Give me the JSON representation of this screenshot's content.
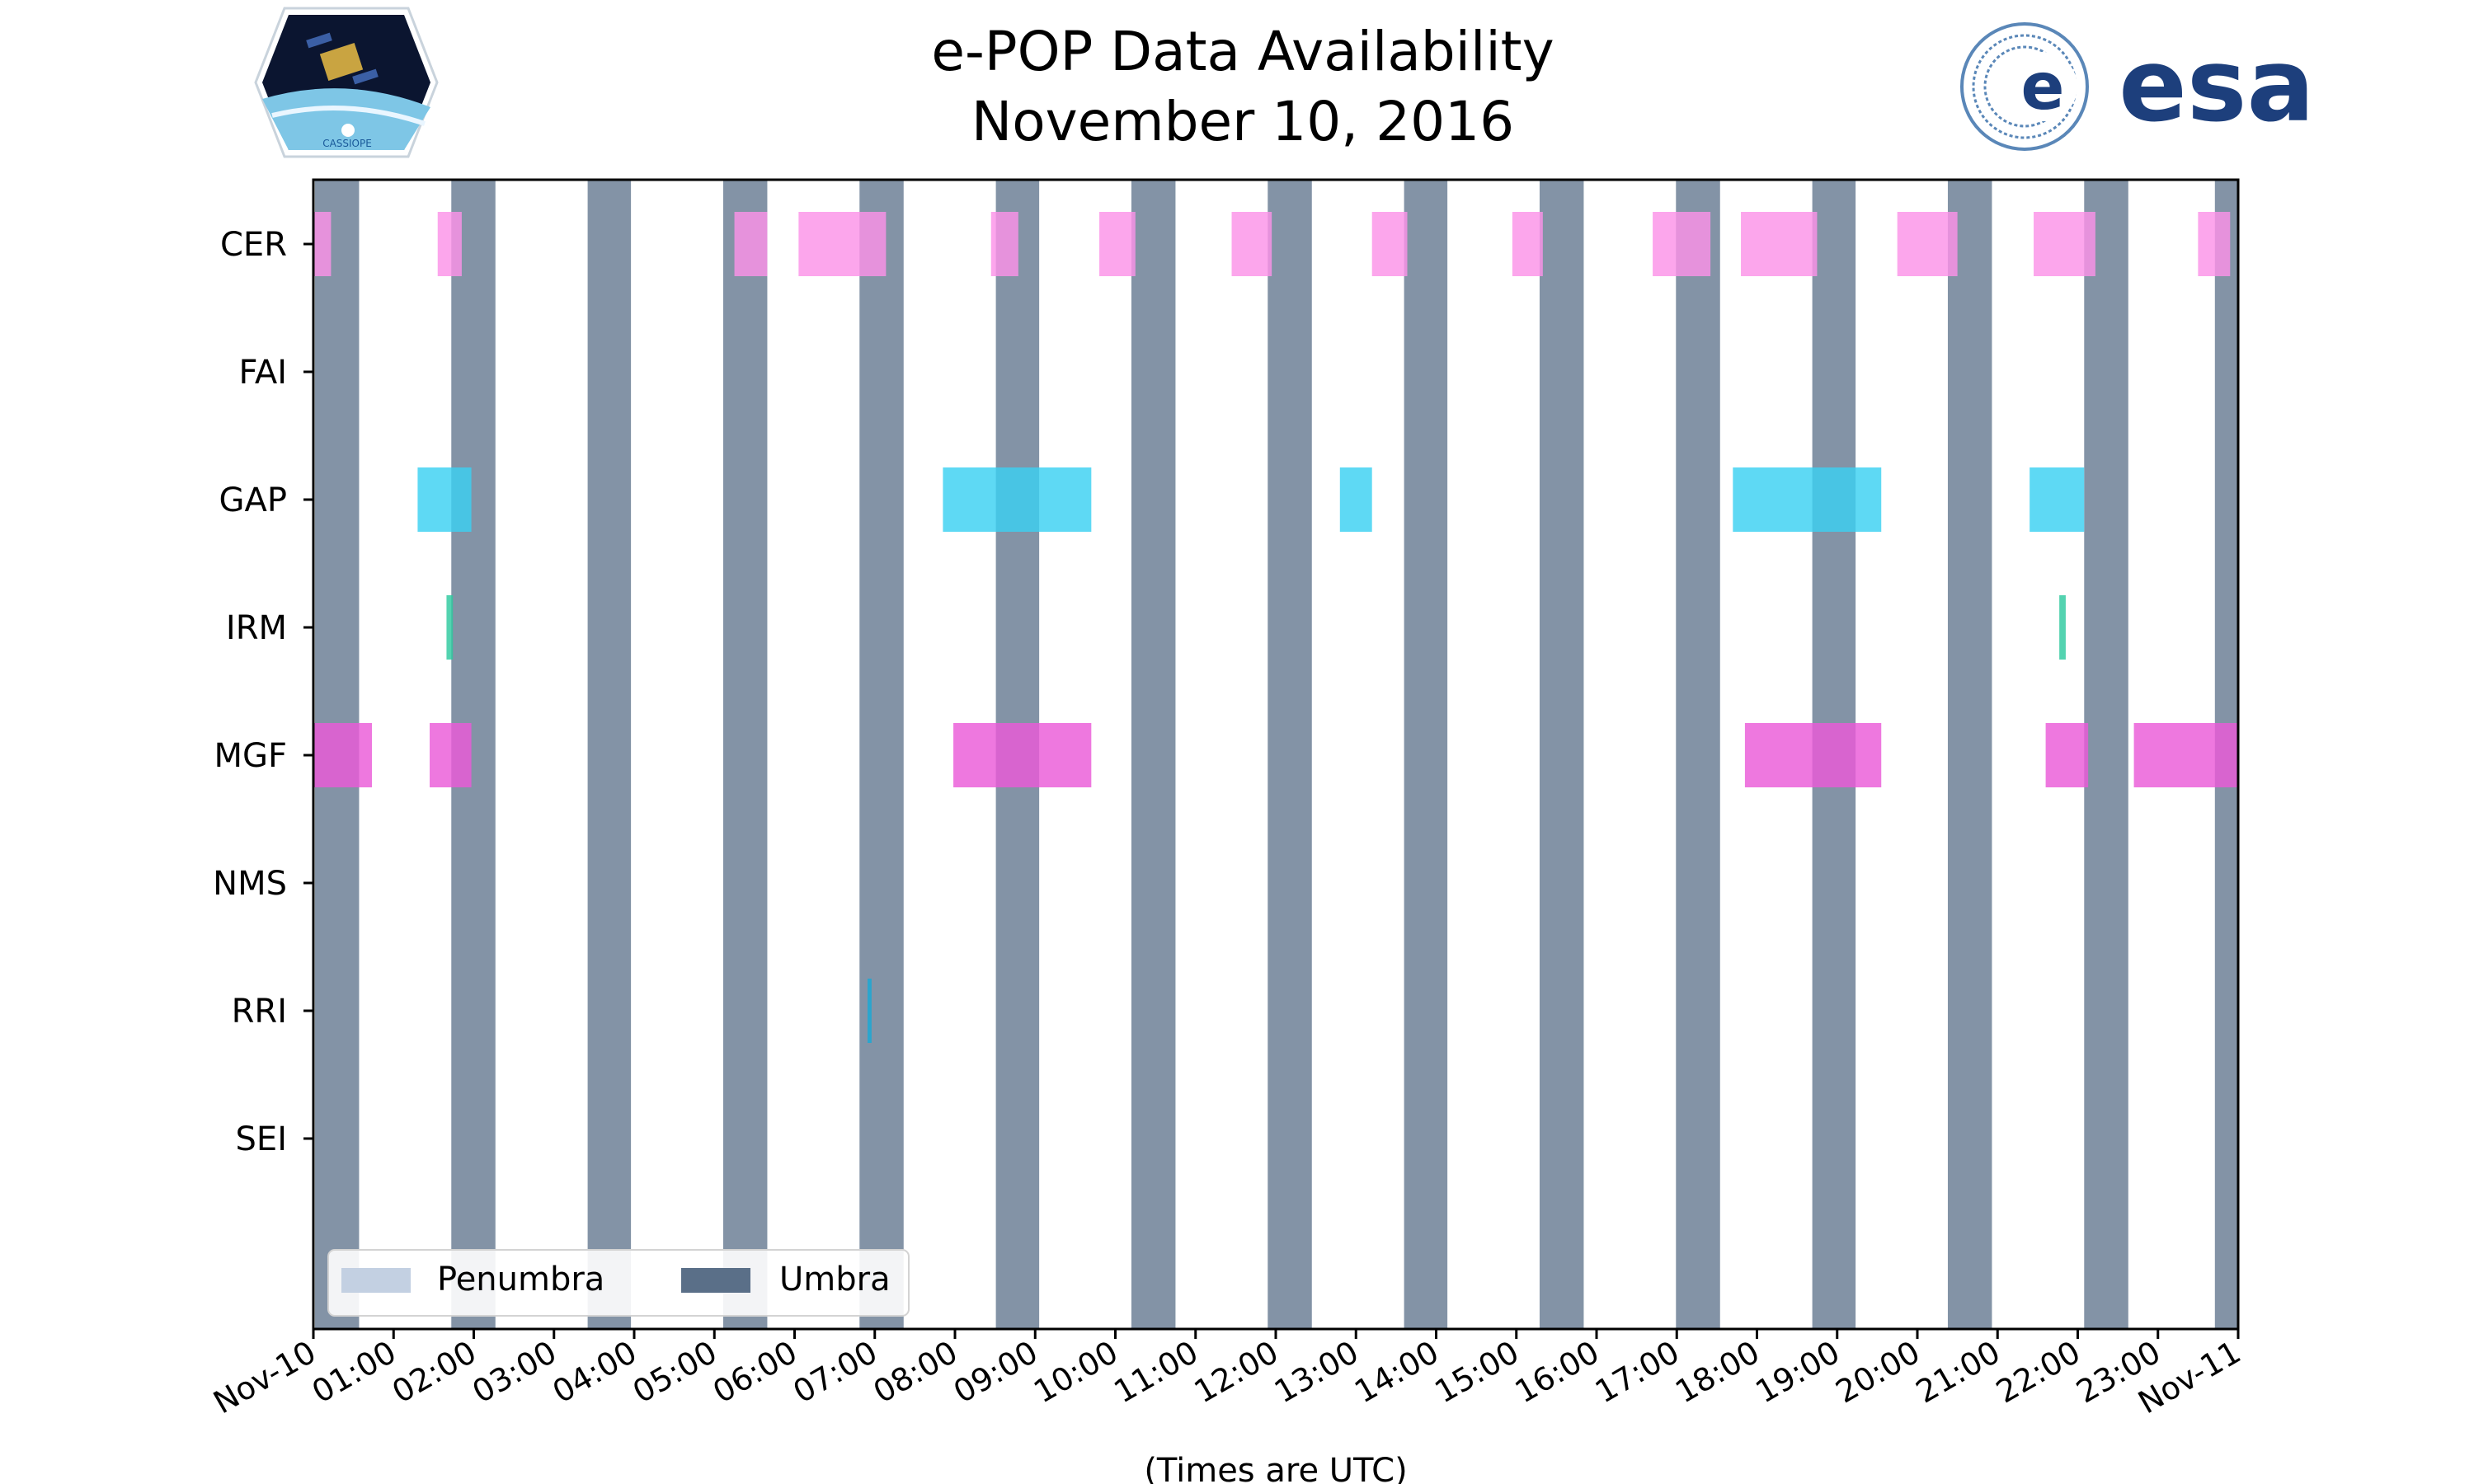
{
  "chart_data": {
    "type": "timeline",
    "title": "e-POP Data Availability",
    "subtitle": "November 10, 2016",
    "xlabel": "(Times are UTC)",
    "xlim_hours": [
      0,
      24
    ],
    "x_tick_labels": [
      "Nov-10",
      "01:00",
      "02:00",
      "03:00",
      "04:00",
      "05:00",
      "06:00",
      "07:00",
      "08:00",
      "09:00",
      "10:00",
      "11:00",
      "12:00",
      "13:00",
      "14:00",
      "15:00",
      "16:00",
      "17:00",
      "18:00",
      "19:00",
      "20:00",
      "21:00",
      "22:00",
      "23:00",
      "Nov-11"
    ],
    "instruments": [
      "CER",
      "FAI",
      "GAP",
      "IRM",
      "MGF",
      "NMS",
      "RRI",
      "SEI"
    ],
    "colors": {
      "CER": "#fb92e8",
      "GAP": "#3ad1f1",
      "IRM": "#2dc99f",
      "MGF": "#ea5ad8",
      "RRI": "#17a9d6",
      "umbra": "#5a6f88",
      "penumbra": "#c3d0e2"
    },
    "umbra_intervals": [
      [
        0.02,
        0.57
      ],
      [
        1.72,
        2.27
      ],
      [
        3.42,
        3.96
      ],
      [
        5.11,
        5.66
      ],
      [
        6.81,
        7.36
      ],
      [
        8.51,
        9.05
      ],
      [
        10.2,
        10.75
      ],
      [
        11.9,
        12.45
      ],
      [
        13.6,
        14.14
      ],
      [
        15.29,
        15.84
      ],
      [
        16.99,
        17.54
      ],
      [
        18.69,
        19.23
      ],
      [
        20.38,
        20.93
      ],
      [
        22.08,
        22.63
      ],
      [
        23.71,
        24.0
      ]
    ],
    "data_intervals": {
      "CER": [
        [
          0.0,
          0.22
        ],
        [
          1.55,
          1.85
        ],
        [
          5.25,
          5.66
        ],
        [
          6.05,
          7.14
        ],
        [
          8.45,
          8.79
        ],
        [
          9.8,
          10.25
        ],
        [
          11.45,
          11.95
        ],
        [
          13.2,
          13.64
        ],
        [
          14.95,
          15.33
        ],
        [
          16.7,
          17.42
        ],
        [
          17.8,
          18.75
        ],
        [
          19.75,
          20.5
        ],
        [
          21.45,
          22.22
        ],
        [
          23.5,
          23.9
        ]
      ],
      "FAI": [],
      "GAP": [
        [
          1.3,
          1.97
        ],
        [
          7.85,
          9.7
        ],
        [
          12.8,
          13.2
        ],
        [
          17.7,
          19.55
        ],
        [
          21.4,
          22.08
        ]
      ],
      "IRM": [
        [
          1.66,
          1.74
        ],
        [
          21.77,
          21.85
        ]
      ],
      "MGF": [
        [
          0.0,
          0.73
        ],
        [
          1.45,
          1.97
        ],
        [
          7.98,
          9.7
        ],
        [
          17.85,
          19.55
        ],
        [
          21.6,
          22.13
        ],
        [
          22.7,
          24.0
        ]
      ],
      "NMS": [],
      "RRI": [
        [
          6.91,
          6.96
        ]
      ],
      "SEI": []
    },
    "legend": {
      "position": "bottom-left",
      "entries": [
        "Penumbra",
        "Umbra"
      ]
    }
  },
  "logos": {
    "left_caption": "CASSIOPE",
    "right_text": "esa"
  }
}
